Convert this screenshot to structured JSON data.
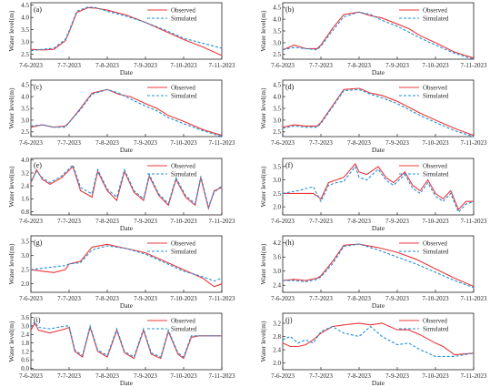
{
  "colors": {
    "observed": "#e8383d",
    "simulated": "#1f8fd6",
    "axis": "#222222"
  },
  "x_tick_labels": [
    "7-6-2023",
    "7-7-2023",
    "7-8-2023",
    "7-9-2023",
    "7-10-2023",
    "7-11-2023"
  ],
  "chart_data": [
    {
      "type": "line",
      "panel_label": "(a)",
      "xlabel": "Date",
      "ylabel": "Water level(m)",
      "x_ticks": [
        "7-6-2023",
        "7-7-2023",
        "7-8-2023",
        "7-9-2023",
        "7-10-2023",
        "7-11-2023"
      ],
      "y_ticks": [
        2.5,
        3.0,
        3.5,
        4.0,
        4.5
      ],
      "ylim": [
        2.3,
        4.6
      ],
      "legend": [
        "Observed",
        "Simulated"
      ],
      "legend_position": "top-right",
      "x": [
        0,
        0.3,
        0.6,
        0.9,
        1.0,
        1.2,
        1.5,
        1.7,
        2.0,
        2.5,
        3.0,
        3.5,
        4.0,
        4.5,
        5.0
      ],
      "series": [
        {
          "name": "Observed",
          "values": [
            2.7,
            2.68,
            2.7,
            3.05,
            3.4,
            4.2,
            4.4,
            4.38,
            4.3,
            4.1,
            3.8,
            3.45,
            3.1,
            2.8,
            2.45
          ]
        },
        {
          "name": "Simulated",
          "values": [
            2.65,
            2.7,
            2.75,
            3.1,
            3.45,
            4.25,
            4.43,
            4.4,
            4.25,
            4.05,
            3.8,
            3.5,
            3.15,
            2.95,
            2.75
          ]
        }
      ]
    },
    {
      "type": "line",
      "panel_label": "(b)",
      "xlabel": "Date",
      "ylabel": "Water level(m)",
      "x_ticks": [
        "7-6-2023",
        "7-7-2023",
        "7-8-2023",
        "7-9-2023",
        "7-10-2023",
        "7-11-2023"
      ],
      "y_ticks": [
        2.5,
        3.0,
        3.5,
        4.0,
        4.5
      ],
      "ylim": [
        2.3,
        4.7
      ],
      "legend": [
        "Observed",
        "Simulated"
      ],
      "legend_position": "top-right",
      "x": [
        0,
        0.3,
        0.6,
        0.9,
        1.0,
        1.3,
        1.6,
        2.0,
        2.3,
        2.6,
        3.0,
        3.3,
        3.6,
        4.0,
        4.5,
        5.0
      ],
      "series": [
        {
          "name": "Observed",
          "values": [
            2.7,
            2.9,
            2.75,
            2.75,
            2.9,
            3.6,
            4.2,
            4.3,
            4.15,
            4.05,
            3.8,
            3.6,
            3.3,
            3.0,
            2.6,
            2.35
          ]
        },
        {
          "name": "Simulated",
          "values": [
            2.7,
            2.8,
            2.75,
            2.7,
            2.85,
            3.5,
            4.1,
            4.3,
            4.2,
            3.95,
            3.7,
            3.45,
            3.2,
            2.9,
            2.55,
            2.3
          ]
        }
      ]
    },
    {
      "type": "line",
      "panel_label": "(c)",
      "xlabel": "Date",
      "ylabel": "Water level(m)",
      "x_ticks": [
        "7-6-2023",
        "7-7-2023",
        "7-8-2023",
        "7-9-2023",
        "7-10-2023",
        "7-11-2023"
      ],
      "y_ticks": [
        2.5,
        3.0,
        3.5,
        4.0,
        4.5
      ],
      "ylim": [
        2.3,
        4.7
      ],
      "legend": [
        "Observed",
        "Simulated"
      ],
      "legend_position": "top-right",
      "x": [
        0,
        0.3,
        0.6,
        0.9,
        1.0,
        1.3,
        1.6,
        2.0,
        2.3,
        2.6,
        3.0,
        3.3,
        3.6,
        4.0,
        4.5,
        5.0
      ],
      "series": [
        {
          "name": "Observed",
          "values": [
            2.7,
            2.8,
            2.7,
            2.75,
            2.9,
            3.5,
            4.15,
            4.3,
            4.1,
            4.0,
            3.7,
            3.5,
            3.2,
            2.95,
            2.6,
            2.35
          ]
        },
        {
          "name": "Simulated",
          "values": [
            2.75,
            2.8,
            2.7,
            2.7,
            2.9,
            3.45,
            4.1,
            4.3,
            4.15,
            3.9,
            3.6,
            3.4,
            3.1,
            2.85,
            2.55,
            2.3
          ]
        }
      ]
    },
    {
      "type": "line",
      "panel_label": "(d)",
      "xlabel": "Date",
      "ylabel": "Water level(m)",
      "x_ticks": [
        "7-6-2023",
        "7-7-2023",
        "7-8-2023",
        "7-9-2023",
        "7-10-2023",
        "7-11-2023"
      ],
      "y_ticks": [
        2.5,
        3.0,
        3.5,
        4.0,
        4.5
      ],
      "ylim": [
        2.3,
        4.7
      ],
      "legend": [
        "Observed",
        "Simulated"
      ],
      "legend_position": "top-right",
      "x": [
        0,
        0.3,
        0.6,
        0.9,
        1.0,
        1.3,
        1.6,
        2.0,
        2.3,
        2.6,
        3.0,
        3.3,
        3.6,
        4.0,
        4.5,
        5.0
      ],
      "series": [
        {
          "name": "Observed",
          "values": [
            2.7,
            2.8,
            2.75,
            2.75,
            2.9,
            3.6,
            4.3,
            4.35,
            4.15,
            4.05,
            3.8,
            3.55,
            3.3,
            3.0,
            2.65,
            2.35
          ]
        },
        {
          "name": "Simulated",
          "values": [
            2.65,
            2.75,
            2.7,
            2.7,
            2.85,
            3.55,
            4.25,
            4.3,
            4.1,
            3.95,
            3.7,
            3.45,
            3.2,
            2.9,
            2.55,
            2.3
          ]
        }
      ]
    },
    {
      "type": "line",
      "panel_label": "(e)",
      "xlabel": "Date",
      "ylabel": "Water level(m)",
      "x_ticks": [
        "7-6-2023",
        "7-7-2023",
        "7-8-2023",
        "7-9-2023",
        "7-10-2023",
        "7-11-2023"
      ],
      "y_ticks": [
        0.8,
        1.6,
        2.4,
        3.2,
        4.0
      ],
      "ylim": [
        0.6,
        4.1
      ],
      "legend": [
        "Observed",
        "Simulated"
      ],
      "legend_position": "top-right",
      "x": [
        0,
        0.15,
        0.3,
        0.5,
        0.8,
        1.1,
        1.3,
        1.6,
        1.75,
        2.0,
        2.25,
        2.45,
        2.7,
        2.95,
        3.1,
        3.35,
        3.6,
        3.8,
        4.05,
        4.3,
        4.45,
        4.65,
        4.8,
        5.0
      ],
      "series": [
        {
          "name": "Observed",
          "values": [
            2.6,
            3.4,
            2.8,
            2.5,
            2.9,
            3.6,
            2.1,
            1.7,
            3.3,
            2.1,
            1.5,
            3.3,
            2.0,
            1.5,
            3.0,
            1.8,
            1.2,
            2.8,
            1.7,
            1.2,
            2.9,
            1.0,
            2.1,
            2.3
          ]
        },
        {
          "name": "Simulated",
          "values": [
            2.7,
            3.3,
            2.9,
            2.6,
            3.0,
            3.7,
            2.3,
            1.9,
            3.4,
            2.2,
            1.7,
            3.4,
            2.1,
            1.6,
            3.1,
            1.9,
            1.3,
            2.9,
            1.8,
            1.3,
            3.0,
            1.1,
            2.0,
            2.4
          ]
        }
      ]
    },
    {
      "type": "line",
      "panel_label": "(f)",
      "xlabel": "Date",
      "ylabel": "Water level(m)",
      "x_ticks": [
        "7-6-2023",
        "7-7-2023",
        "7-8-2023",
        "7-9-2023",
        "7-10-2023",
        "7-11-2023"
      ],
      "y_ticks": [
        2.0,
        2.5,
        3.0,
        3.5
      ],
      "ylim": [
        1.7,
        3.8
      ],
      "legend": [
        "Observed",
        "Simulated"
      ],
      "legend_position": "top-right",
      "x": [
        0,
        0.4,
        0.8,
        1.0,
        1.2,
        1.4,
        1.6,
        1.9,
        2.0,
        2.2,
        2.5,
        2.7,
        2.9,
        3.2,
        3.4,
        3.6,
        3.8,
        4.0,
        4.2,
        4.4,
        4.6,
        4.8,
        5.0
      ],
      "series": [
        {
          "name": "Observed",
          "values": [
            2.5,
            2.5,
            2.5,
            2.3,
            2.9,
            3.0,
            3.1,
            3.6,
            3.3,
            3.2,
            3.5,
            3.1,
            2.9,
            3.3,
            2.8,
            2.6,
            3.0,
            2.5,
            2.3,
            2.6,
            1.9,
            2.2,
            2.2
          ]
        },
        {
          "name": "Simulated",
          "values": [
            2.5,
            2.6,
            2.75,
            2.2,
            2.8,
            2.9,
            2.95,
            3.5,
            3.1,
            3.0,
            3.4,
            3.0,
            2.8,
            3.2,
            2.7,
            2.5,
            2.9,
            2.4,
            2.2,
            2.5,
            1.8,
            2.1,
            2.2
          ]
        }
      ]
    },
    {
      "type": "line",
      "panel_label": "(g)",
      "xlabel": "Date",
      "ylabel": "Water level(m)",
      "x_ticks": [
        "7-6-2023",
        "7-7-2023",
        "7-8-2023",
        "7-9-2023",
        "7-10-2023",
        "7-11-2023"
      ],
      "y_ticks": [
        2.0,
        2.5,
        3.0,
        3.5
      ],
      "ylim": [
        1.7,
        3.7
      ],
      "legend": [
        "Observed",
        "Simulated"
      ],
      "legend_position": "top-right",
      "x": [
        0,
        0.3,
        0.6,
        0.9,
        1.0,
        1.3,
        1.6,
        2.0,
        2.5,
        3.0,
        3.5,
        4.0,
        4.5,
        4.8,
        5.0
      ],
      "series": [
        {
          "name": "Observed",
          "values": [
            2.5,
            2.45,
            2.4,
            2.5,
            2.7,
            2.8,
            3.3,
            3.4,
            3.25,
            3.1,
            2.8,
            2.5,
            2.2,
            1.9,
            2.0
          ]
        },
        {
          "name": "Simulated",
          "values": [
            2.5,
            2.55,
            2.6,
            2.65,
            2.7,
            2.75,
            3.2,
            3.35,
            3.25,
            3.05,
            2.75,
            2.45,
            2.25,
            2.1,
            2.2
          ]
        }
      ]
    },
    {
      "type": "line",
      "panel_label": "(h)",
      "xlabel": "Date",
      "ylabel": "Water level(m)",
      "x_ticks": [
        "7-6-2023",
        "7-7-2023",
        "7-8-2023",
        "7-9-2023",
        "7-10-2023",
        "7-11-2023"
      ],
      "y_ticks": [
        2.4,
        3.0,
        3.6,
        4.2
      ],
      "ylim": [
        2.1,
        4.5
      ],
      "legend": [
        "Observed",
        "Simulated"
      ],
      "legend_position": "top-right",
      "x": [
        0,
        0.3,
        0.6,
        0.9,
        1.0,
        1.3,
        1.6,
        2.0,
        2.5,
        3.0,
        3.5,
        4.0,
        4.5,
        5.0
      ],
      "series": [
        {
          "name": "Observed",
          "values": [
            2.6,
            2.65,
            2.6,
            2.7,
            2.8,
            3.4,
            4.1,
            4.15,
            4.0,
            3.8,
            3.5,
            3.1,
            2.7,
            2.35
          ]
        },
        {
          "name": "Simulated",
          "values": [
            2.6,
            2.6,
            2.55,
            2.65,
            2.75,
            3.3,
            4.05,
            4.15,
            3.9,
            3.6,
            3.3,
            2.95,
            2.6,
            2.3
          ]
        }
      ]
    },
    {
      "type": "line",
      "panel_label": "(i)",
      "xlabel": "Date",
      "ylabel": "Water level(m)",
      "x_ticks": [
        "7-6-2023",
        "7-7-2023",
        "7-8-2023",
        "7-9-2023",
        "7-10-2023",
        "7-11-2023"
      ],
      "y_ticks": [
        0.0,
        0.6,
        1.2,
        1.8,
        2.4,
        3.0,
        3.6
      ],
      "ylim": [
        -0.1,
        3.9
      ],
      "legend": [
        "Observed",
        "Simulated"
      ],
      "legend_position": "top-right",
      "x": [
        0,
        0.1,
        0.2,
        0.5,
        0.9,
        1.0,
        1.15,
        1.35,
        1.55,
        1.75,
        2.0,
        2.25,
        2.45,
        2.7,
        2.95,
        3.15,
        3.4,
        3.6,
        3.85,
        4.0,
        4.2,
        4.4,
        5.0
      ],
      "series": [
        {
          "name": "Observed",
          "values": [
            2.7,
            3.2,
            2.7,
            2.5,
            2.8,
            2.9,
            1.2,
            0.8,
            2.9,
            1.2,
            0.8,
            2.7,
            1.1,
            0.7,
            2.7,
            1.0,
            0.7,
            2.6,
            1.0,
            0.7,
            2.2,
            2.3,
            2.3
          ]
        },
        {
          "name": "Simulated",
          "values": [
            2.9,
            3.3,
            2.9,
            2.8,
            3.0,
            3.0,
            1.3,
            0.9,
            3.0,
            1.3,
            0.9,
            2.8,
            1.2,
            0.8,
            2.8,
            1.1,
            0.8,
            2.7,
            1.1,
            0.8,
            2.3,
            2.3,
            2.3
          ]
        }
      ]
    },
    {
      "type": "line",
      "panel_label": "(j)",
      "xlabel": "Date",
      "ylabel": "Water level(m)",
      "x_ticks": [
        "7-6-2023",
        "7-7-2023",
        "7-8-2023",
        "7-9-2023",
        "7-10-2023",
        "7-11-2023"
      ],
      "y_ticks": [
        2.0,
        2.4,
        2.8,
        3.2
      ],
      "ylim": [
        1.8,
        3.5
      ],
      "legend": [
        "Observed",
        "Simulated"
      ],
      "legend_position": "top-right",
      "x": [
        0,
        0.2,
        0.4,
        0.6,
        0.8,
        1.0,
        1.3,
        1.6,
        2.0,
        2.3,
        2.6,
        3.0,
        3.3,
        3.6,
        4.0,
        4.2,
        4.5,
        5.0
      ],
      "series": [
        {
          "name": "Observed",
          "values": [
            2.6,
            2.5,
            2.5,
            2.55,
            2.7,
            2.9,
            3.1,
            3.15,
            3.2,
            3.15,
            3.2,
            3.0,
            3.0,
            2.85,
            2.6,
            2.5,
            2.25,
            2.3
          ]
        },
        {
          "name": "Simulated",
          "values": [
            2.7,
            2.8,
            2.6,
            2.7,
            2.6,
            2.95,
            3.1,
            2.9,
            2.8,
            3.1,
            2.8,
            2.55,
            2.6,
            2.4,
            2.2,
            2.2,
            2.2,
            2.3
          ]
        }
      ]
    }
  ]
}
